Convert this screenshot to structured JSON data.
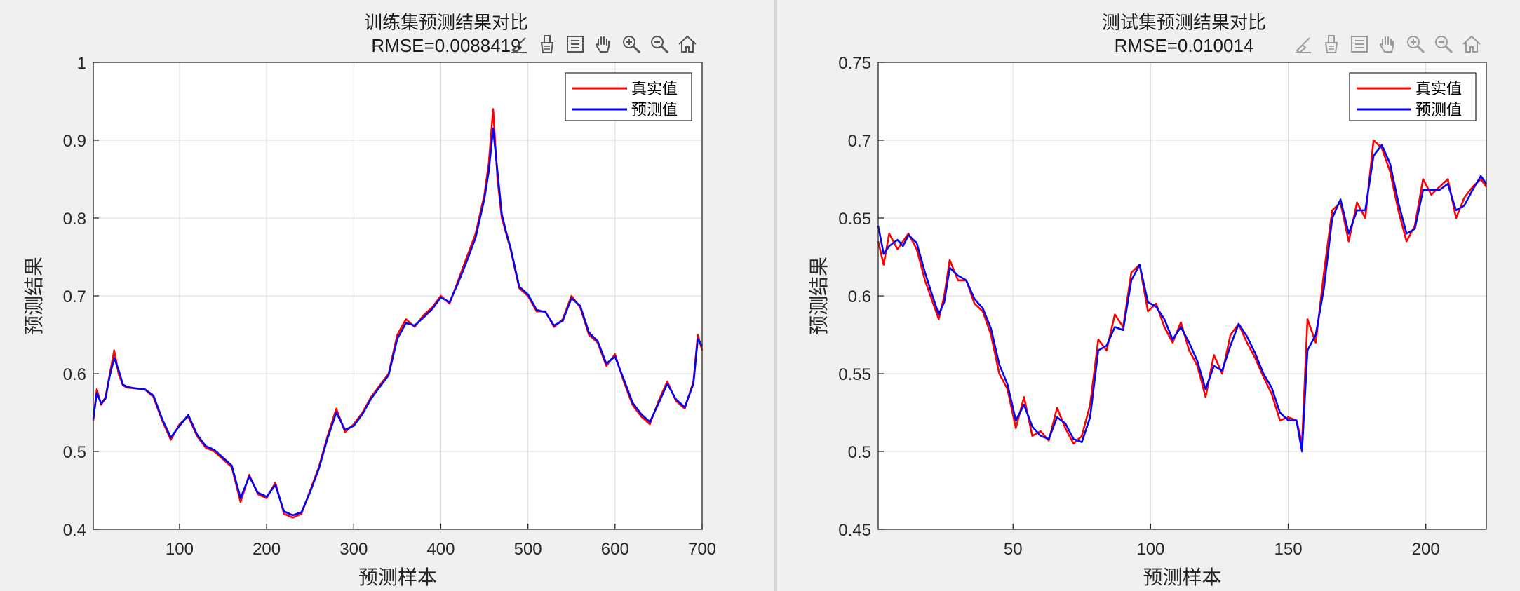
{
  "left_window": {
    "title": "训练集预测结果对比",
    "subtitle": "RMSE=0.0088419"
  },
  "right_window": {
    "title": "测试集预测结果对比",
    "subtitle": "RMSE=0.010014"
  },
  "toolbar_icons": [
    "brush-icon",
    "data-tips-icon",
    "legend-icon",
    "pan-hand-icon",
    "zoom-in-icon",
    "zoom-out-icon",
    "home-icon"
  ],
  "colors": {
    "true_series": "#ff0000",
    "pred_series": "#0000ff",
    "grid": "#dcdcdc"
  },
  "chart_data": [
    {
      "type": "line",
      "title": "训练集预测结果对比",
      "subtitle": "RMSE=0.0088419",
      "xlabel": "预测样本",
      "ylabel": "预测结果",
      "xlim": [
        1,
        700
      ],
      "ylim": [
        0.4,
        1
      ],
      "xticks": [
        100,
        200,
        300,
        400,
        500,
        600,
        700
      ],
      "yticks": [
        0.4,
        0.5,
        0.6,
        0.7,
        0.8,
        0.9,
        1
      ],
      "ytick_labels": [
        "0.4",
        "0.5",
        "0.6",
        "0.7",
        "0.8",
        "0.9",
        "1"
      ],
      "grid": true,
      "legend_position": "top-right",
      "series": [
        {
          "name": "真实值",
          "color": "#ff0000",
          "x": [
            1,
            5,
            10,
            15,
            20,
            25,
            30,
            35,
            40,
            50,
            60,
            70,
            80,
            90,
            100,
            110,
            120,
            130,
            140,
            150,
            160,
            170,
            180,
            190,
            200,
            210,
            220,
            230,
            240,
            250,
            260,
            270,
            280,
            290,
            300,
            310,
            320,
            330,
            340,
            350,
            360,
            370,
            380,
            390,
            400,
            410,
            420,
            430,
            440,
            450,
            455,
            460,
            465,
            470,
            475,
            480,
            490,
            500,
            510,
            520,
            530,
            540,
            550,
            560,
            570,
            580,
            590,
            600,
            610,
            620,
            630,
            640,
            650,
            660,
            670,
            680,
            690,
            695,
            700
          ],
          "values": [
            0.54,
            0.58,
            0.56,
            0.57,
            0.6,
            0.63,
            0.6,
            0.585,
            0.582,
            0.581,
            0.58,
            0.57,
            0.54,
            0.515,
            0.535,
            0.545,
            0.52,
            0.505,
            0.5,
            0.49,
            0.48,
            0.435,
            0.47,
            0.445,
            0.44,
            0.46,
            0.42,
            0.415,
            0.42,
            0.45,
            0.48,
            0.52,
            0.555,
            0.525,
            0.535,
            0.55,
            0.57,
            0.585,
            0.6,
            0.65,
            0.67,
            0.66,
            0.675,
            0.685,
            0.7,
            0.69,
            0.72,
            0.75,
            0.78,
            0.83,
            0.87,
            0.94,
            0.85,
            0.8,
            0.78,
            0.76,
            0.71,
            0.7,
            0.68,
            0.68,
            0.66,
            0.67,
            0.7,
            0.685,
            0.65,
            0.64,
            0.61,
            0.625,
            0.59,
            0.56,
            0.545,
            0.535,
            0.565,
            0.59,
            0.565,
            0.555,
            0.59,
            0.65,
            0.63
          ]
        },
        {
          "name": "预测值",
          "color": "#0000ff",
          "x": [
            1,
            5,
            10,
            15,
            20,
            25,
            30,
            35,
            40,
            50,
            60,
            70,
            80,
            90,
            100,
            110,
            120,
            130,
            140,
            150,
            160,
            170,
            180,
            190,
            200,
            210,
            220,
            230,
            240,
            250,
            260,
            270,
            280,
            290,
            300,
            310,
            320,
            330,
            340,
            350,
            360,
            370,
            380,
            390,
            400,
            410,
            420,
            430,
            440,
            450,
            455,
            460,
            465,
            470,
            475,
            480,
            490,
            500,
            510,
            520,
            530,
            540,
            550,
            560,
            570,
            580,
            590,
            600,
            610,
            620,
            630,
            640,
            650,
            660,
            670,
            680,
            690,
            695,
            700
          ],
          "values": [
            0.542,
            0.575,
            0.562,
            0.568,
            0.598,
            0.62,
            0.605,
            0.586,
            0.583,
            0.581,
            0.58,
            0.572,
            0.542,
            0.518,
            0.533,
            0.547,
            0.522,
            0.507,
            0.502,
            0.492,
            0.482,
            0.44,
            0.468,
            0.447,
            0.442,
            0.457,
            0.423,
            0.418,
            0.422,
            0.448,
            0.478,
            0.517,
            0.55,
            0.528,
            0.533,
            0.548,
            0.568,
            0.583,
            0.598,
            0.645,
            0.665,
            0.662,
            0.672,
            0.683,
            0.698,
            0.692,
            0.717,
            0.745,
            0.775,
            0.825,
            0.86,
            0.915,
            0.86,
            0.805,
            0.782,
            0.762,
            0.712,
            0.702,
            0.682,
            0.679,
            0.662,
            0.668,
            0.697,
            0.687,
            0.653,
            0.642,
            0.613,
            0.622,
            0.593,
            0.563,
            0.548,
            0.538,
            0.562,
            0.587,
            0.567,
            0.557,
            0.587,
            0.645,
            0.635
          ]
        }
      ]
    },
    {
      "type": "line",
      "title": "测试集预测结果对比",
      "subtitle": "RMSE=0.010014",
      "xlabel": "预测样本",
      "ylabel": "预测结果",
      "xlim": [
        1,
        222
      ],
      "ylim": [
        0.45,
        0.75
      ],
      "xticks": [
        50,
        100,
        150,
        200
      ],
      "yticks": [
        0.45,
        0.5,
        0.55,
        0.6,
        0.65,
        0.7,
        0.75
      ],
      "ytick_labels": [
        "0.45",
        "0.5",
        "0.55",
        "0.6",
        "0.65",
        "0.7",
        "0.75"
      ],
      "grid": true,
      "legend_position": "top-right",
      "series": [
        {
          "name": "真实值",
          "color": "#ff0000",
          "x": [
            1,
            3,
            5,
            8,
            10,
            12,
            15,
            18,
            20,
            23,
            25,
            27,
            30,
            33,
            36,
            39,
            42,
            45,
            48,
            51,
            54,
            57,
            60,
            63,
            66,
            69,
            72,
            75,
            78,
            81,
            84,
            87,
            90,
            93,
            96,
            99,
            102,
            105,
            108,
            111,
            114,
            117,
            120,
            123,
            126,
            129,
            132,
            135,
            138,
            141,
            144,
            147,
            150,
            153,
            155,
            157,
            160,
            163,
            166,
            169,
            172,
            175,
            178,
            181,
            184,
            187,
            190,
            193,
            196,
            199,
            202,
            205,
            208,
            211,
            214,
            217,
            220,
            222
          ],
          "values": [
            0.635,
            0.62,
            0.64,
            0.63,
            0.635,
            0.64,
            0.63,
            0.61,
            0.6,
            0.585,
            0.6,
            0.623,
            0.61,
            0.61,
            0.595,
            0.59,
            0.575,
            0.55,
            0.54,
            0.515,
            0.535,
            0.51,
            0.513,
            0.507,
            0.528,
            0.515,
            0.505,
            0.51,
            0.53,
            0.572,
            0.565,
            0.588,
            0.58,
            0.615,
            0.62,
            0.59,
            0.595,
            0.58,
            0.57,
            0.583,
            0.565,
            0.555,
            0.535,
            0.562,
            0.55,
            0.575,
            0.582,
            0.57,
            0.56,
            0.548,
            0.537,
            0.52,
            0.522,
            0.52,
            0.505,
            0.585,
            0.57,
            0.615,
            0.655,
            0.66,
            0.635,
            0.66,
            0.65,
            0.7,
            0.695,
            0.68,
            0.655,
            0.635,
            0.645,
            0.675,
            0.665,
            0.67,
            0.675,
            0.65,
            0.663,
            0.67,
            0.675,
            0.67
          ]
        },
        {
          "name": "预测值",
          "color": "#0000ff",
          "x": [
            1,
            3,
            5,
            8,
            10,
            12,
            15,
            18,
            20,
            23,
            25,
            27,
            30,
            33,
            36,
            39,
            42,
            45,
            48,
            51,
            54,
            57,
            60,
            63,
            66,
            69,
            72,
            75,
            78,
            81,
            84,
            87,
            90,
            93,
            96,
            99,
            102,
            105,
            108,
            111,
            114,
            117,
            120,
            123,
            126,
            129,
            132,
            135,
            138,
            141,
            144,
            147,
            150,
            153,
            155,
            157,
            160,
            163,
            166,
            169,
            172,
            175,
            178,
            181,
            184,
            187,
            190,
            193,
            196,
            199,
            202,
            205,
            208,
            211,
            214,
            217,
            220,
            222
          ],
          "values": [
            0.645,
            0.627,
            0.632,
            0.636,
            0.632,
            0.639,
            0.634,
            0.615,
            0.604,
            0.588,
            0.596,
            0.618,
            0.613,
            0.61,
            0.598,
            0.592,
            0.579,
            0.556,
            0.543,
            0.52,
            0.53,
            0.516,
            0.51,
            0.508,
            0.522,
            0.518,
            0.508,
            0.506,
            0.522,
            0.565,
            0.568,
            0.58,
            0.578,
            0.61,
            0.62,
            0.596,
            0.593,
            0.585,
            0.572,
            0.58,
            0.57,
            0.558,
            0.54,
            0.555,
            0.552,
            0.568,
            0.582,
            0.574,
            0.563,
            0.55,
            0.541,
            0.525,
            0.52,
            0.52,
            0.5,
            0.565,
            0.575,
            0.605,
            0.65,
            0.662,
            0.64,
            0.655,
            0.655,
            0.69,
            0.697,
            0.685,
            0.66,
            0.64,
            0.643,
            0.668,
            0.668,
            0.668,
            0.672,
            0.655,
            0.658,
            0.668,
            0.677,
            0.672
          ]
        }
      ]
    }
  ]
}
